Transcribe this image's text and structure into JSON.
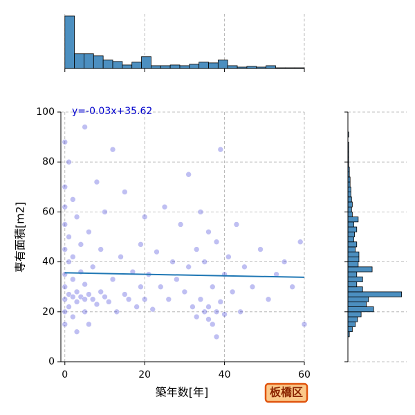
{
  "chart_data": [
    {
      "type": "scatter",
      "xlabel": "築年数[年]",
      "ylabel": "専有面積[m2]",
      "annotation": "y=-0.03x+35.62",
      "badge": "板橋区",
      "color": "#0000cc",
      "x": [
        0,
        0,
        0,
        0,
        0,
        0,
        0,
        0,
        0,
        0,
        1,
        1,
        1,
        1,
        1,
        2,
        2,
        2,
        2,
        2,
        3,
        3,
        3,
        3,
        4,
        4,
        4,
        5,
        5,
        5,
        5,
        6,
        6,
        6,
        7,
        7,
        8,
        8,
        9,
        9,
        10,
        10,
        11,
        12,
        12,
        13,
        14,
        15,
        15,
        16,
        17,
        18,
        19,
        19,
        20,
        20,
        21,
        22,
        23,
        24,
        25,
        26,
        27,
        28,
        29,
        30,
        31,
        31,
        32,
        33,
        33,
        34,
        34,
        35,
        35,
        36,
        36,
        36,
        37,
        37,
        38,
        38,
        38,
        39,
        39,
        40,
        40,
        41,
        42,
        43,
        44,
        45,
        47,
        49,
        51,
        53,
        55,
        57,
        59,
        60
      ],
      "values": [
        25,
        45,
        62,
        30,
        20,
        70,
        15,
        88,
        35,
        55,
        27,
        40,
        22,
        50,
        80,
        26,
        33,
        18,
        65,
        42,
        24,
        28,
        58,
        12,
        26,
        36,
        47,
        25,
        94,
        20,
        31,
        27,
        15,
        52,
        25,
        38,
        23,
        72,
        28,
        45,
        26,
        60,
        24,
        33,
        85,
        20,
        42,
        27,
        68,
        25,
        36,
        22,
        47,
        30,
        25,
        58,
        35,
        21,
        44,
        30,
        62,
        25,
        40,
        33,
        55,
        28,
        38,
        75,
        22,
        45,
        18,
        60,
        25,
        20,
        40,
        17,
        52,
        22,
        30,
        15,
        20,
        48,
        10,
        24,
        85,
        19,
        35,
        42,
        28,
        55,
        20,
        38,
        30,
        45,
        25,
        35,
        40,
        30,
        48,
        15
      ],
      "regression": {
        "slope": -0.03,
        "intercept": 35.62,
        "color": "#1f77b4"
      },
      "xlim": [
        -1,
        60
      ],
      "ylim": [
        0,
        100
      ],
      "xticks": [
        0,
        20,
        40,
        60
      ],
      "yticks": [
        0,
        20,
        40,
        60,
        80,
        100
      ],
      "grid": true
    },
    {
      "type": "histogram",
      "orientation": "vertical",
      "color": "#4c8fc0",
      "bins": [
        0,
        2.4,
        4.8,
        7.2,
        9.6,
        12,
        14.4,
        16.8,
        19.2,
        21.6,
        24,
        26.4,
        28.8,
        31.2,
        33.6,
        36,
        38.4,
        40.8,
        43.2,
        45.6,
        48,
        50.4,
        52.8,
        55.2,
        57.6,
        60
      ],
      "values": [
        750,
        210,
        210,
        180,
        120,
        100,
        50,
        90,
        170,
        40,
        40,
        50,
        40,
        60,
        90,
        80,
        120,
        40,
        20,
        30,
        20,
        40,
        10,
        10,
        10
      ],
      "xlim": [
        -1,
        60
      ],
      "ylim": [
        0,
        780
      ]
    },
    {
      "type": "histogram",
      "orientation": "horizontal",
      "color": "#4c8fc0",
      "bins": [
        8,
        10,
        12,
        14,
        16,
        18,
        20,
        22,
        24,
        26,
        28,
        30,
        32,
        34,
        36,
        38,
        40,
        42,
        44,
        46,
        48,
        50,
        52,
        54,
        56,
        58,
        60,
        62,
        64,
        66,
        68,
        70,
        72,
        74,
        76,
        78,
        80,
        82,
        84,
        86,
        88,
        90,
        92,
        94,
        96,
        98,
        100
      ],
      "values": [
        0,
        2,
        6,
        10,
        13,
        18,
        35,
        25,
        28,
        73,
        20,
        12,
        20,
        12,
        33,
        14,
        15,
        15,
        10,
        12,
        8,
        9,
        12,
        8,
        14,
        6,
        5,
        6,
        5,
        4,
        4,
        3,
        3,
        2,
        2,
        1,
        1,
        1,
        1,
        1,
        0,
        1,
        0,
        0,
        0,
        0
      ],
      "xlim": [
        0,
        80
      ],
      "ylim": [
        0,
        100
      ]
    }
  ]
}
